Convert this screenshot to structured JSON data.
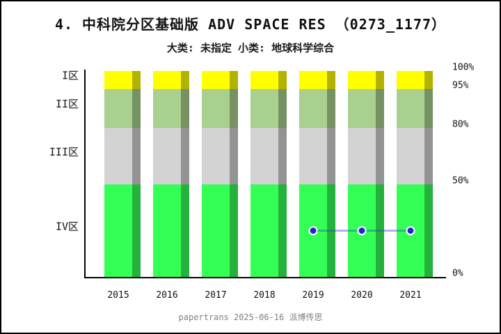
{
  "header": {
    "title": "4. 中科院分区基础版 ADV SPACE RES （0273_1177）",
    "subtitle": "大类: 未指定 小类: 地球科学综合"
  },
  "footer": {
    "text": "papertrans 2025-06-16 派博传思"
  },
  "chart_data": {
    "type": "bar",
    "stacked": true,
    "title": "4. 中科院分区基础版 ADV SPACE RES （0273_1177）",
    "subtitle": "大类: 未指定 小类: 地球科学综合",
    "categories": [
      "2015",
      "2016",
      "2017",
      "2018",
      "2019",
      "2020",
      "2021"
    ],
    "zones": [
      {
        "label": "I区",
        "range_percent": [
          95,
          100
        ],
        "color": "#ffff00",
        "shadow_color": "#b2b200"
      },
      {
        "label": "II区",
        "range_percent": [
          80,
          95
        ],
        "color": "#a9d08e",
        "shadow_color": "#769263"
      },
      {
        "label": "III区",
        "range_percent": [
          50,
          80
        ],
        "color": "#d3d3d3",
        "shadow_color": "#939393"
      },
      {
        "label": "IV区",
        "range_percent": [
          0,
          50
        ],
        "color": "#33ff55",
        "shadow_color": "#24b23c"
      }
    ],
    "series": [
      {
        "name": "I区 (95-100%)",
        "values": [
          5,
          5,
          5,
          5,
          5,
          5,
          5
        ]
      },
      {
        "name": "II区 (80-95%)",
        "values": [
          15,
          15,
          15,
          15,
          15,
          15,
          15
        ]
      },
      {
        "name": "III区 (50-80%)",
        "values": [
          30,
          30,
          30,
          30,
          30,
          30,
          30
        ]
      },
      {
        "name": "IV区 (0-50%)",
        "values": [
          50,
          50,
          50,
          50,
          50,
          50,
          50
        ]
      }
    ],
    "line": {
      "x": [
        "2019",
        "2020",
        "2021"
      ],
      "values_percent": [
        25,
        25,
        25
      ],
      "dot_color": "#2222d2",
      "dot_outline": "#ffffff",
      "segment_color": "rgba(51,68,204,0.4)"
    },
    "y_axis": {
      "side": "right",
      "scale": "piecewise-zones",
      "ticks": [
        {
          "label": "100%",
          "value": 100
        },
        {
          "label": "95%",
          "value": 95
        },
        {
          "label": "80%",
          "value": 80
        },
        {
          "label": "50%",
          "value": 50
        },
        {
          "label": "0%",
          "value": 0
        }
      ]
    },
    "ylim": [
      0,
      100
    ],
    "legend": "none",
    "grid": "off"
  }
}
